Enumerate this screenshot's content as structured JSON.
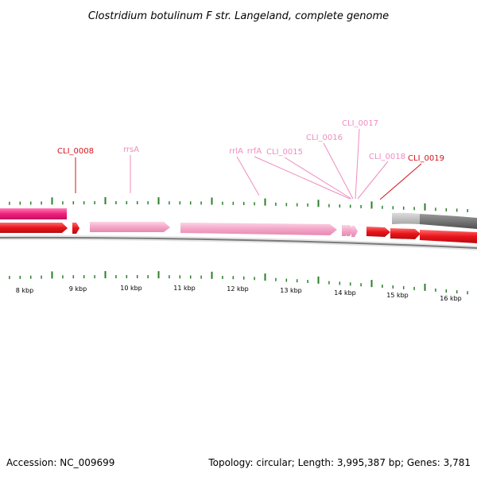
{
  "title": "Clostridium botulinum F str. Langeland, complete genome",
  "footer": {
    "accession": "Accession: NC_009699",
    "summary": "Topology: circular; Length: 3,995,387 bp; Genes: 3,781"
  },
  "colors": {
    "tick": "#2a7f2a",
    "gene_pink": "#f4a6c8",
    "gene_red": "#e8141b",
    "gene_magenta": "#ef1f7c",
    "label_red": "#d4141b",
    "label_pink": "#ef8cc0",
    "gc_gray": "#707070",
    "backbone": "#888888"
  },
  "gene_labels": [
    {
      "name": "CLI_0008",
      "emphasis": true
    },
    {
      "name": "rrsA",
      "emphasis": false
    },
    {
      "name": "rrlA",
      "emphasis": false
    },
    {
      "name": "rrfA",
      "emphasis": false
    },
    {
      "name": "CLI_0015",
      "emphasis": false
    },
    {
      "name": "CLI_0016",
      "emphasis": false
    },
    {
      "name": "CLI_0017",
      "emphasis": false
    },
    {
      "name": "CLI_0018",
      "emphasis": false
    },
    {
      "name": "CLI_0019",
      "emphasis": true
    }
  ],
  "kbp_labels": [
    "8 kbp",
    "9 kbp",
    "10 kbp",
    "11 kbp",
    "12 kbp",
    "13 kbp",
    "14 kbp",
    "15 kbp",
    "16 kbp"
  ]
}
